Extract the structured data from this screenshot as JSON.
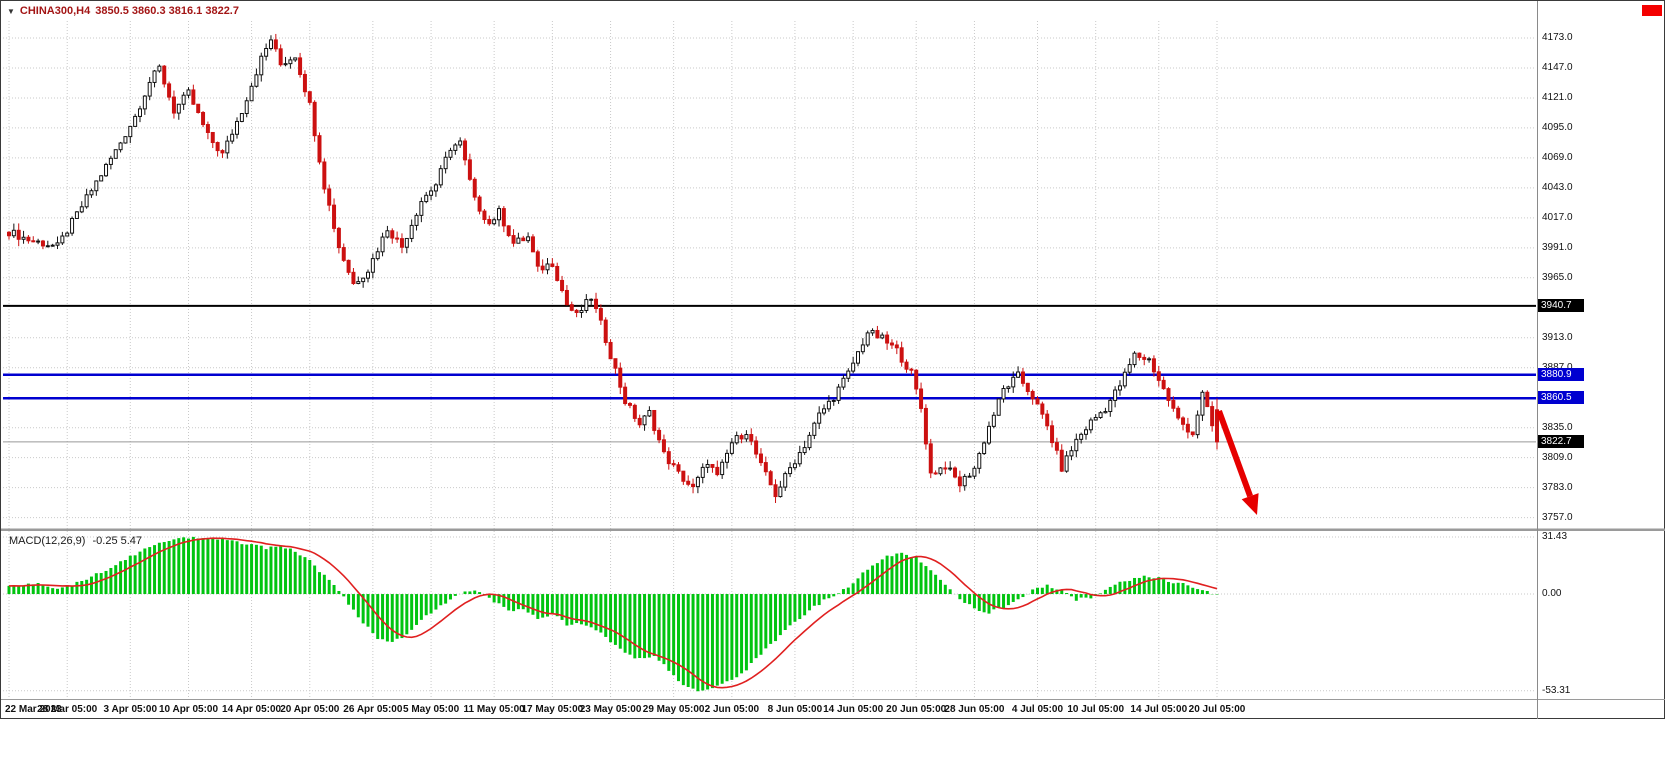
{
  "header": {
    "symbol": "CHINA300,H4",
    "ohlc_text": "3850.5 3860.3 3816.1 3822.7",
    "dropdown_icon": "▼",
    "text_color": "#a31515"
  },
  "marker_box": {
    "color": "#f40000"
  },
  "chart_data": {
    "type": "candlestick",
    "symbol": "CHINA300",
    "timeframe": "H4",
    "ohlc": {
      "open": 3850.5,
      "high": 3860.3,
      "low": 3816.1,
      "close": 3822.7
    },
    "bars_total": 250,
    "price_axis": {
      "ylim": [
        3748,
        4186
      ],
      "ticks": [
        "4173.0",
        "4147.0",
        "4121.0",
        "4095.0",
        "4069.0",
        "4043.0",
        "4017.0",
        "3991.0",
        "3965.0",
        "3913.0",
        "3887.0",
        "3835.0",
        "3809.0",
        "3783.0",
        "3757.0"
      ]
    },
    "price_badges": [
      {
        "label": "3940.7",
        "value": 3940.7,
        "bg": "#000000"
      },
      {
        "label": "3880.9",
        "value": 3880.9,
        "bg": "#0000d0"
      },
      {
        "label": "3860.5",
        "value": 3860.5,
        "bg": "#0000d0"
      },
      {
        "label": "3822.7",
        "value": 3822.7,
        "bg": "#000000"
      }
    ],
    "levels": [
      {
        "value": 3940.7,
        "color": "#000000",
        "width": 2
      },
      {
        "value": 3880.9,
        "color": "#0000d0",
        "width": 2.5
      },
      {
        "value": 3860.5,
        "color": "#0000d0",
        "width": 2.5
      },
      {
        "value": 3822.7,
        "color": "#999999",
        "width": 1
      }
    ],
    "time_axis": {
      "labels": [
        "22 Mar 2023",
        "28 Mar 05:00",
        "3 Apr 05:00",
        "10 Apr 05:00",
        "14 Apr 05:00",
        "20 Apr 05:00",
        "26 Apr 05:00",
        "5 May 05:00",
        "11 May 05:00",
        "17 May 05:00",
        "23 May 05:00",
        "29 May 05:00",
        "2 Jun 05:00",
        "8 Jun 05:00",
        "14 Jun 05:00",
        "20 Jun 05:00",
        "28 Jun 05:00",
        "4 Jul 05:00",
        "10 Jul 05:00",
        "14 Jul 05:00",
        "20 Jul 05:00"
      ],
      "bars": [
        0,
        12,
        25,
        37,
        50,
        62,
        75,
        87,
        100,
        112,
        124,
        137,
        149,
        162,
        174,
        187,
        199,
        212,
        224,
        237,
        249
      ]
    },
    "price_keyframes": [
      [
        0,
        4005
      ],
      [
        4,
        3998
      ],
      [
        10,
        3992
      ],
      [
        14,
        4020
      ],
      [
        18,
        4048
      ],
      [
        22,
        4075
      ],
      [
        26,
        4105
      ],
      [
        29,
        4135
      ],
      [
        31,
        4147
      ],
      [
        34,
        4110
      ],
      [
        37,
        4125
      ],
      [
        41,
        4088
      ],
      [
        44,
        4072
      ],
      [
        48,
        4110
      ],
      [
        52,
        4155
      ],
      [
        54,
        4172
      ],
      [
        56,
        4150
      ],
      [
        59,
        4158
      ],
      [
        62,
        4115
      ],
      [
        65,
        4045
      ],
      [
        68,
        3992
      ],
      [
        71,
        3960
      ],
      [
        74,
        3972
      ],
      [
        78,
        4008
      ],
      [
        81,
        3992
      ],
      [
        85,
        4032
      ],
      [
        88,
        4046
      ],
      [
        91,
        4078
      ],
      [
        93,
        4082
      ],
      [
        96,
        4032
      ],
      [
        99,
        4012
      ],
      [
        101,
        4022
      ],
      [
        104,
        3995
      ],
      [
        107,
        4000
      ],
      [
        109,
        3972
      ],
      [
        112,
        3978
      ],
      [
        115,
        3942
      ],
      [
        117,
        3932
      ],
      [
        120,
        3948
      ],
      [
        122,
        3925
      ],
      [
        125,
        3885
      ],
      [
        127,
        3858
      ],
      [
        130,
        3838
      ],
      [
        132,
        3848
      ],
      [
        135,
        3812
      ],
      [
        138,
        3795
      ],
      [
        141,
        3782
      ],
      [
        144,
        3806
      ],
      [
        146,
        3792
      ],
      [
        149,
        3822
      ],
      [
        152,
        3832
      ],
      [
        155,
        3802
      ],
      [
        158,
        3777
      ],
      [
        161,
        3800
      ],
      [
        164,
        3820
      ],
      [
        167,
        3846
      ],
      [
        170,
        3862
      ],
      [
        173,
        3882
      ],
      [
        177,
        3918
      ],
      [
        180,
        3912
      ],
      [
        183,
        3902
      ],
      [
        186,
        3882
      ],
      [
        188,
        3852
      ],
      [
        190,
        3795
      ],
      [
        193,
        3802
      ],
      [
        196,
        3786
      ],
      [
        199,
        3800
      ],
      [
        202,
        3836
      ],
      [
        205,
        3868
      ],
      [
        208,
        3880
      ],
      [
        211,
        3862
      ],
      [
        214,
        3836
      ],
      [
        217,
        3800
      ],
      [
        220,
        3824
      ],
      [
        223,
        3840
      ],
      [
        226,
        3852
      ],
      [
        229,
        3872
      ],
      [
        232,
        3898
      ],
      [
        235,
        3894
      ],
      [
        238,
        3868
      ],
      [
        241,
        3842
      ],
      [
        244,
        3830
      ],
      [
        246,
        3864
      ],
      [
        249,
        3822.7
      ]
    ],
    "gen": {
      "close_noise": 7,
      "wick": 6,
      "macd_noise": 1.6
    },
    "colors": {
      "up_fill": "#ffffff",
      "up_stroke": "#111111",
      "down": "#cc1111",
      "grid": "#c9c9c9",
      "macd_bar": "#00c410",
      "macd_signal": "#e02020"
    },
    "macd": {
      "label": "MACD(12,26,9)",
      "values_text": "-0.25 5.47",
      "current": -0.25,
      "ylim": [
        -57.3,
        34.2
      ],
      "scale": [
        {
          "label": "31.43",
          "value": 31.43
        },
        {
          "label": "0.00",
          "value": 0
        },
        {
          "label": "-53.31",
          "value": -53.31
        }
      ],
      "keyframes": [
        [
          0,
          4
        ],
        [
          6,
          6
        ],
        [
          10,
          3
        ],
        [
          14,
          6
        ],
        [
          18,
          11
        ],
        [
          22,
          16
        ],
        [
          26,
          22
        ],
        [
          30,
          27
        ],
        [
          34,
          30
        ],
        [
          38,
          31
        ],
        [
          42,
          30.5
        ],
        [
          46,
          29
        ],
        [
          50,
          27
        ],
        [
          53,
          25.5
        ],
        [
          56,
          26
        ],
        [
          59,
          24
        ],
        [
          62,
          18
        ],
        [
          65,
          10
        ],
        [
          68,
          2
        ],
        [
          70,
          -6
        ],
        [
          73,
          -16
        ],
        [
          76,
          -24
        ],
        [
          79,
          -27
        ],
        [
          82,
          -22
        ],
        [
          85,
          -14
        ],
        [
          88,
          -8
        ],
        [
          91,
          -3
        ],
        [
          94,
          2
        ],
        [
          97,
          1
        ],
        [
          100,
          -4
        ],
        [
          103,
          -9
        ],
        [
          106,
          -8
        ],
        [
          109,
          -13
        ],
        [
          112,
          -11
        ],
        [
          115,
          -17
        ],
        [
          118,
          -16
        ],
        [
          121,
          -20
        ],
        [
          124,
          -26
        ],
        [
          127,
          -32
        ],
        [
          130,
          -36
        ],
        [
          133,
          -34
        ],
        [
          136,
          -42
        ],
        [
          139,
          -50
        ],
        [
          142,
          -53
        ],
        [
          145,
          -52
        ],
        [
          148,
          -48
        ],
        [
          151,
          -44
        ],
        [
          154,
          -36
        ],
        [
          157,
          -28
        ],
        [
          160,
          -20
        ],
        [
          163,
          -13
        ],
        [
          166,
          -7
        ],
        [
          169,
          -2
        ],
        [
          172,
          2
        ],
        [
          175,
          9
        ],
        [
          178,
          16
        ],
        [
          181,
          21
        ],
        [
          184,
          23
        ],
        [
          187,
          20
        ],
        [
          190,
          13
        ],
        [
          193,
          5
        ],
        [
          196,
          -3
        ],
        [
          199,
          -8
        ],
        [
          202,
          -10
        ],
        [
          205,
          -7
        ],
        [
          208,
          -3
        ],
        [
          211,
          2
        ],
        [
          214,
          5
        ],
        [
          217,
          2
        ],
        [
          220,
          -3
        ],
        [
          223,
          -2
        ],
        [
          226,
          2
        ],
        [
          229,
          6
        ],
        [
          232,
          9
        ],
        [
          235,
          10
        ],
        [
          238,
          8
        ],
        [
          241,
          6
        ],
        [
          244,
          4
        ],
        [
          247,
          1
        ],
        [
          249,
          -0.25
        ]
      ]
    },
    "arrow": {
      "tail": [
        1218,
        410
      ],
      "tip": [
        1256,
        514
      ],
      "width": 6,
      "color": "#e60000"
    }
  }
}
